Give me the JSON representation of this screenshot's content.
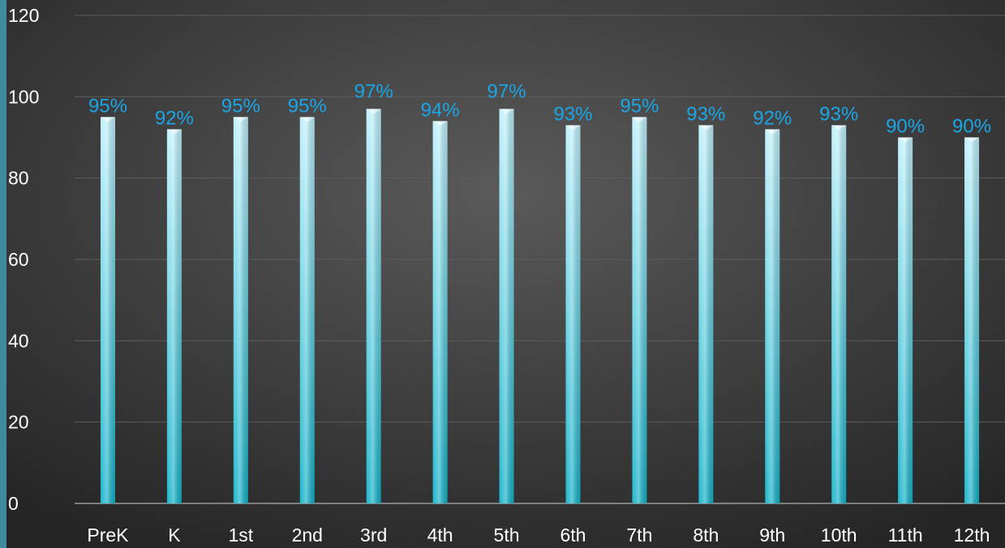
{
  "colors": {
    "background_center": "#5a5a5a",
    "background_edge": "#252525",
    "bar_top": "#bff0fb",
    "bar_bottom": "#11b1c8",
    "data_label": "#1aa6e6",
    "tick_label": "#ffffff",
    "gridline": "#5c5c5c",
    "left_edge_accent": "#3f8a9e"
  },
  "chart_data": {
    "type": "bar",
    "title": "",
    "xlabel": "",
    "ylabel": "",
    "ylim": [
      0,
      120
    ],
    "y_ticks": [
      0,
      20,
      40,
      60,
      80,
      100,
      120
    ],
    "y_tick_labels": [
      "0",
      "20",
      "40",
      "60",
      "80",
      "100",
      "120"
    ],
    "grid": true,
    "legend": "none",
    "categories": [
      "PreK",
      "K",
      "1st",
      "2nd",
      "3rd",
      "4th",
      "5th",
      "6th",
      "7th",
      "8th",
      "9th",
      "10th",
      "11th",
      "12th"
    ],
    "values": [
      95,
      92,
      95,
      95,
      97,
      94,
      97,
      93,
      95,
      93,
      92,
      93,
      90,
      90
    ],
    "data_labels": [
      "95%",
      "92%",
      "95%",
      "95%",
      "97%",
      "94%",
      "97%",
      "93%",
      "95%",
      "93%",
      "92%",
      "93%",
      "90%",
      "90%"
    ]
  }
}
